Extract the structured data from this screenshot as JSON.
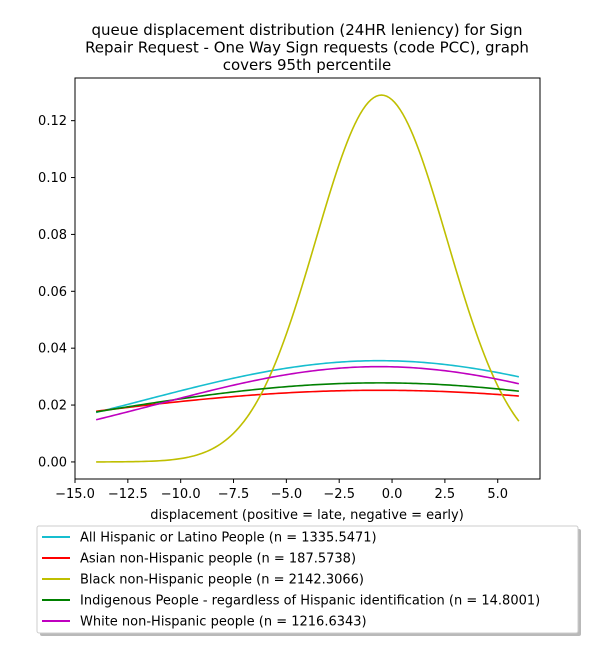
{
  "chart_data": {
    "type": "line",
    "title_lines": [
      "queue displacement distribution (24HR leniency) for Sign",
      "Repair Request - One Way Sign  requests (code PCC), graph",
      "covers 95th percentile"
    ],
    "xlabel": "displacement (positive = late, negative = early)",
    "ylabel": "",
    "xlim": [
      -15,
      7
    ],
    "ylim": [
      -0.006,
      0.135
    ],
    "x_ticks": [
      -15.0,
      -12.5,
      -10.0,
      -7.5,
      -5.0,
      -2.5,
      0.0,
      2.5,
      5.0
    ],
    "x_tick_labels": [
      "−15.0",
      "−12.5",
      "−10.0",
      "−7.5",
      "−5.0",
      "−2.5",
      "0.0",
      "2.5",
      "5.0"
    ],
    "y_ticks": [
      0.0,
      0.02,
      0.04,
      0.06,
      0.08,
      0.1,
      0.12
    ],
    "y_tick_labels": [
      "0.00",
      "0.02",
      "0.04",
      "0.06",
      "0.08",
      "0.10",
      "0.12"
    ],
    "x_range": [
      -14,
      6
    ],
    "grid": false,
    "legend_placement": "below",
    "series": [
      {
        "name": "All Hispanic or Latino People (n = 1335.5471)",
        "color": "#17becf",
        "mean": -0.6,
        "sd": 11.2,
        "peak": 0.0356
      },
      {
        "name": "Asian non-Hispanic people (n = 187.5738)",
        "color": "#ff0000",
        "mean": -0.6,
        "sd": 16.1,
        "peak": 0.0252
      },
      {
        "name": "Black non-Hispanic people (n = 2142.3066)",
        "color": "#bfbf00",
        "mean": -0.5,
        "sd": 3.1,
        "peak": 0.129
      },
      {
        "name": "Indigenous People - regardless of Hispanic identification (n = 14.8001)",
        "color": "#008000",
        "mean": -0.6,
        "sd": 14.0,
        "peak": 0.0278
      },
      {
        "name": "White non-Hispanic people (n = 1216.6343)",
        "color": "#bf00bf",
        "mean": -0.6,
        "sd": 10.5,
        "peak": 0.0335
      }
    ]
  }
}
